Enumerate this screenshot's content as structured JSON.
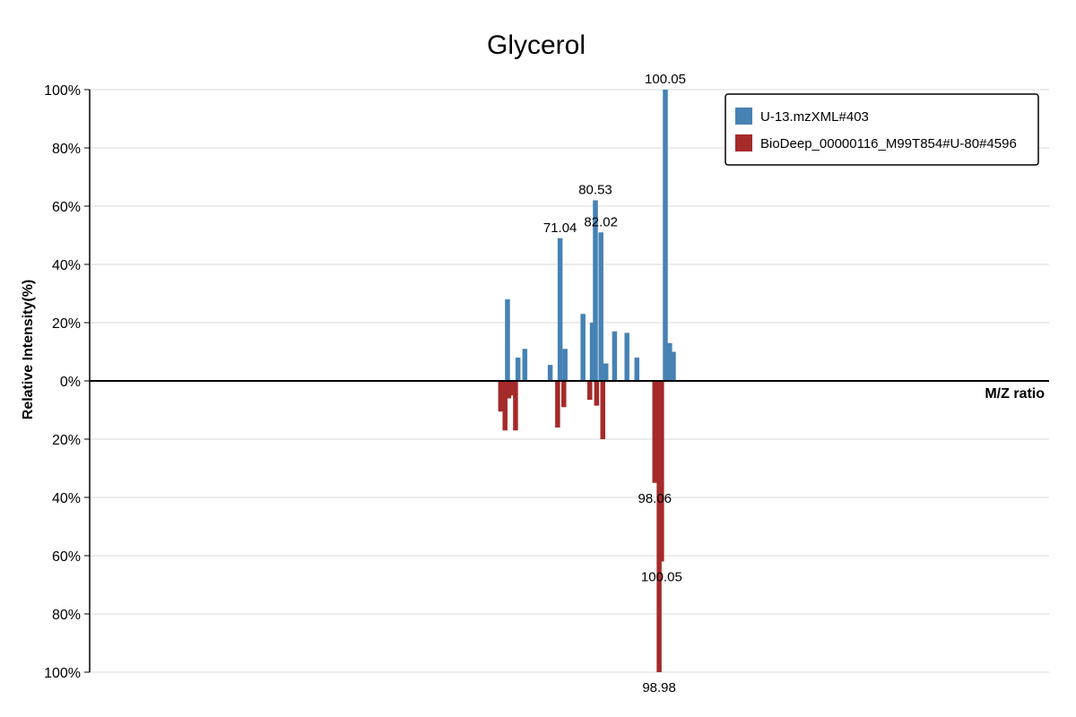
{
  "chart_data": {
    "type": "bar",
    "title": "Glycerol",
    "xlabel": "M/Z ratio",
    "ylabel": "Relative Intensity(%)",
    "ylim": [
      -100,
      100
    ],
    "y_ticks": [
      {
        "value": 100,
        "label": "100%"
      },
      {
        "value": 80,
        "label": "80%"
      },
      {
        "value": 60,
        "label": "60%"
      },
      {
        "value": 40,
        "label": "40%"
      },
      {
        "value": 20,
        "label": "20%"
      },
      {
        "value": 0,
        "label": "0%"
      },
      {
        "value": -20,
        "label": "20%"
      },
      {
        "value": -40,
        "label": "40%"
      },
      {
        "value": -60,
        "label": "60%"
      },
      {
        "value": -80,
        "label": "80%"
      },
      {
        "value": -100,
        "label": "100%"
      }
    ],
    "xlim": [
      0,
      155
    ],
    "grid": true,
    "legend_position": "top-right",
    "series": [
      {
        "name": "U-13.mzXML#403",
        "color": "#4682b4",
        "direction": "up",
        "points": [
          {
            "mz": 67.5,
            "intensity": 28
          },
          {
            "mz": 69.2,
            "intensity": 8
          },
          {
            "mz": 70.3,
            "intensity": 11
          },
          {
            "mz": 74.4,
            "intensity": 5.5
          },
          {
            "mz": 76.0,
            "intensity": 49,
            "label": "71.04"
          },
          {
            "mz": 76.8,
            "intensity": 11
          },
          {
            "mz": 79.7,
            "intensity": 23
          },
          {
            "mz": 81.2,
            "intensity": 20
          },
          {
            "mz": 81.7,
            "intensity": 62,
            "label": "80.53"
          },
          {
            "mz": 82.6,
            "intensity": 51,
            "label": "82.02"
          },
          {
            "mz": 83.4,
            "intensity": 6
          },
          {
            "mz": 84.8,
            "intensity": 17
          },
          {
            "mz": 86.8,
            "intensity": 16.5
          },
          {
            "mz": 88.4,
            "intensity": 8
          },
          {
            "mz": 93.0,
            "intensity": 100,
            "label": "100.05"
          },
          {
            "mz": 93.7,
            "intensity": 13
          },
          {
            "mz": 94.3,
            "intensity": 10
          }
        ]
      },
      {
        "name": "BioDeep_00000116_M99T854#U-80#4596",
        "color": "#a52a2a",
        "direction": "down",
        "points": [
          {
            "mz": 66.4,
            "intensity": 10.5
          },
          {
            "mz": 67.1,
            "intensity": 17
          },
          {
            "mz": 67.7,
            "intensity": 6
          },
          {
            "mz": 68.2,
            "intensity": 5
          },
          {
            "mz": 68.8,
            "intensity": 17
          },
          {
            "mz": 75.6,
            "intensity": 16
          },
          {
            "mz": 76.6,
            "intensity": 9
          },
          {
            "mz": 80.8,
            "intensity": 6.5
          },
          {
            "mz": 81.9,
            "intensity": 8.5
          },
          {
            "mz": 82.9,
            "intensity": 20
          },
          {
            "mz": 91.3,
            "intensity": 35,
            "label": "98.06"
          },
          {
            "mz": 92.4,
            "intensity": 62,
            "label": "100.05"
          },
          {
            "mz": 92.0,
            "intensity": 100,
            "label": "98.98"
          }
        ]
      }
    ]
  }
}
